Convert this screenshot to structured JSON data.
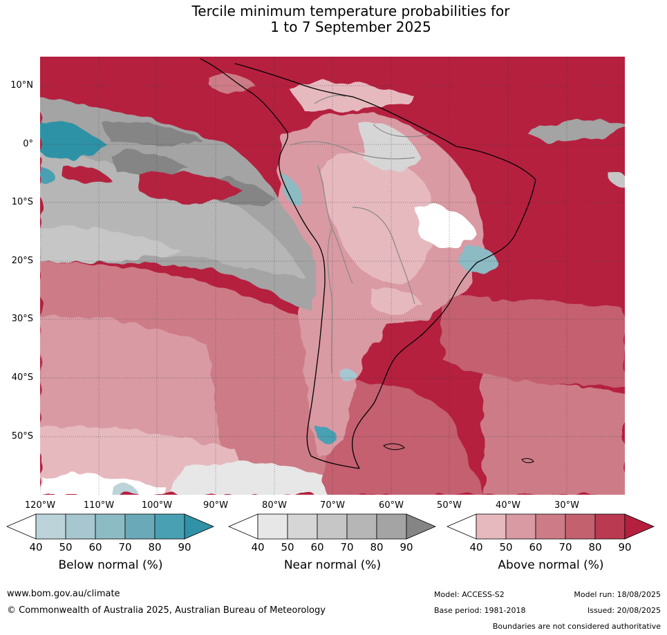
{
  "title": {
    "line1": "Tercile minimum temperature probabilities for",
    "line2": "1 to 7 September 2025"
  },
  "lat_labels": [
    "10°N",
    "0°",
    "10°S",
    "20°S",
    "30°S",
    "40°S",
    "50°S"
  ],
  "lon_labels": [
    "120°W",
    "110°W",
    "100°W",
    "90°W",
    "80°W",
    "70°W",
    "60°W",
    "50°W",
    "40°W",
    "30°W"
  ],
  "legends": [
    {
      "title": "Below normal (%)",
      "ticks": [
        "40",
        "50",
        "60",
        "70",
        "80",
        "90"
      ],
      "colors": [
        "#ffffff",
        "#bcd3da",
        "#a6c7cf",
        "#8cbbc4",
        "#6aaab8",
        "#4aa0b3",
        "#2f92a6"
      ]
    },
    {
      "title": "Near normal (%)",
      "ticks": [
        "40",
        "50",
        "60",
        "70",
        "80",
        "90"
      ],
      "colors": [
        "#ffffff",
        "#e7e7e7",
        "#d6d6d6",
        "#c6c6c6",
        "#b6b6b6",
        "#a4a4a4",
        "#858585"
      ]
    },
    {
      "title": "Above normal (%)",
      "ticks": [
        "40",
        "50",
        "60",
        "70",
        "80",
        "90"
      ],
      "colors": [
        "#ffffff",
        "#e6b9bf",
        "#d99aa3",
        "#cd7c87",
        "#c4616f",
        "#ba3a51",
        "#b5203f"
      ]
    }
  ],
  "footer": {
    "url": "www.bom.gov.au/climate",
    "copyright": "© Commonwealth of Australia 2025, Australian Bureau of Meteorology",
    "model": "Model: ACCESS-S2",
    "base_period": "Base period: 1981-2018",
    "model_run": "Model run: 18/08/2025",
    "issued": "Issued: 20/08/2025",
    "boundaries": "Boundaries are not considered authoritative"
  }
}
